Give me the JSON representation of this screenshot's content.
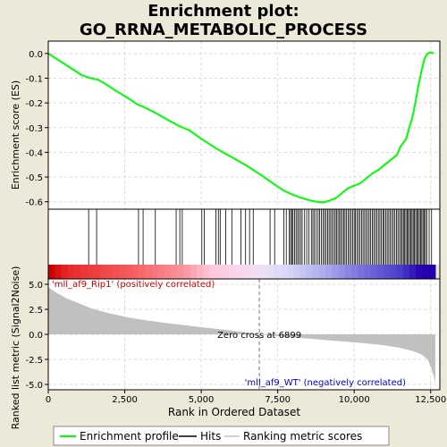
{
  "title_line1": "Enrichment plot:",
  "title_line2": "GO_RRNA_METABOLIC_PROCESS",
  "legend": {
    "profile": "Enrichment profile",
    "hits": "Hits",
    "metric": "Ranking metric scores"
  },
  "colors": {
    "background": "#ece9d8",
    "profile": "#00ff00",
    "metric_fill": "#c0c0c0",
    "positive_label": "#cc0000",
    "negative_label": "#0000cc"
  },
  "chart_data": [
    {
      "type": "line",
      "name": "enrichment",
      "ylabel": "Enrichment score (ES)",
      "xlim": [
        0,
        12800
      ],
      "ylim": [
        -0.63,
        0.05
      ],
      "yticks": [
        0.0,
        -0.1,
        -0.2,
        -0.3,
        -0.4,
        -0.5,
        -0.6
      ],
      "ytick_labels": [
        "0.0",
        "-0.1",
        "-0.2",
        "-0.3",
        "-0.4",
        "-0.5",
        "-0.6"
      ],
      "grid": true,
      "x": [
        0,
        400,
        800,
        1100,
        1300,
        1400,
        1600,
        1800,
        2200,
        2600,
        2900,
        3100,
        3500,
        4000,
        4300,
        4600,
        5000,
        5500,
        6000,
        6500,
        7000,
        7400,
        7700,
        8000,
        8300,
        8600,
        8800,
        9000,
        9200,
        9400,
        9600,
        9800,
        10000,
        10200,
        10400,
        10600,
        10800,
        11000,
        11200,
        11400,
        11500,
        11700,
        11800,
        11900,
        12000,
        12100,
        12200,
        12300,
        12400,
        12500,
        12600
      ],
      "y": [
        0.0,
        -0.032,
        -0.064,
        -0.088,
        -0.097,
        -0.1,
        -0.105,
        -0.118,
        -0.15,
        -0.18,
        -0.205,
        -0.215,
        -0.24,
        -0.275,
        -0.295,
        -0.31,
        -0.345,
        -0.385,
        -0.42,
        -0.455,
        -0.495,
        -0.53,
        -0.555,
        -0.572,
        -0.585,
        -0.596,
        -0.6,
        -0.602,
        -0.595,
        -0.585,
        -0.565,
        -0.545,
        -0.535,
        -0.525,
        -0.505,
        -0.485,
        -0.47,
        -0.45,
        -0.43,
        -0.41,
        -0.38,
        -0.345,
        -0.3,
        -0.26,
        -0.2,
        -0.13,
        -0.07,
        -0.02,
        0.0,
        0.005,
        0.0
      ]
    },
    {
      "type": "hits",
      "name": "hits",
      "hit_positions": [
        1320,
        1580,
        2950,
        3100,
        3500,
        4180,
        4300,
        4380,
        5020,
        5100,
        5480,
        5560,
        5620,
        5800,
        6000,
        6300,
        6450,
        6580,
        6700,
        7250,
        7400,
        7700,
        7780,
        7880,
        7920,
        7960,
        8000,
        8050,
        8100,
        8150,
        8200,
        8250,
        8300,
        8380,
        8450,
        8520,
        8600,
        8650,
        8700,
        8760,
        8820,
        8870,
        8930,
        8980,
        9030,
        9080,
        9130,
        9180,
        9230,
        9280,
        9330,
        9380,
        9420,
        9470,
        9520,
        9560,
        9610,
        9660,
        9700,
        9750,
        9800,
        9850,
        9900,
        9950,
        10000,
        10040,
        10090,
        10140,
        10190,
        10240,
        10290,
        10340,
        10390,
        10440,
        10490,
        10540,
        10590,
        10640,
        10690,
        10740,
        10790,
        10840,
        10890,
        10940,
        10980,
        11030,
        11080,
        11130,
        11180,
        11230,
        11280,
        11330,
        11380,
        11430,
        11480,
        11530,
        11570,
        11610,
        11650,
        11690,
        11730,
        11770,
        11810,
        11850,
        11890,
        11930,
        11970,
        12010,
        12050,
        12090,
        12130,
        12170,
        12210,
        12250,
        12290,
        12330,
        12370,
        12450,
        12530
      ]
    },
    {
      "type": "area",
      "name": "ranking_metric",
      "xlabel": "Rank in Ordered Dataset",
      "ylabel": "Ranked list metric (Signal2Noise)",
      "xlim": [
        0,
        12800
      ],
      "ylim": [
        -5.0,
        5.0
      ],
      "yticks": [
        5.0,
        2.5,
        0.0,
        -2.5,
        -5.0
      ],
      "ytick_labels": [
        "5.0",
        "2.5",
        "0.0",
        "-2.5",
        "-5.0"
      ],
      "xticks": [
        0,
        2500,
        5000,
        7500,
        10000,
        12500
      ],
      "xtick_labels": [
        "0",
        "2,500",
        "5,000",
        "7,500",
        "10,000",
        "12,500"
      ],
      "x": [
        0,
        100,
        300,
        600,
        1000,
        1400,
        2000,
        2600,
        3200,
        3800,
        4500,
        5200,
        5800,
        6400,
        6899,
        7400,
        8000,
        8600,
        9200,
        9800,
        10400,
        11000,
        11500,
        11900,
        12200,
        12400,
        12500,
        12600,
        12650
      ],
      "y": [
        4.7,
        4.5,
        4.1,
        3.6,
        3.1,
        2.6,
        2.1,
        1.7,
        1.4,
        1.15,
        0.9,
        0.65,
        0.45,
        0.22,
        0.0,
        -0.15,
        -0.3,
        -0.45,
        -0.6,
        -0.75,
        -0.9,
        -1.1,
        -1.35,
        -1.65,
        -2.0,
        -2.5,
        -3.2,
        -4.2,
        -4.9
      ],
      "zero_cross": 6899,
      "zero_cross_label": "Zero cross at 6899",
      "positive_label": "'mll_af9_Rip1' (positively correlated)",
      "negative_label": "'mll_af9_WT' (negatively correlated)"
    }
  ]
}
